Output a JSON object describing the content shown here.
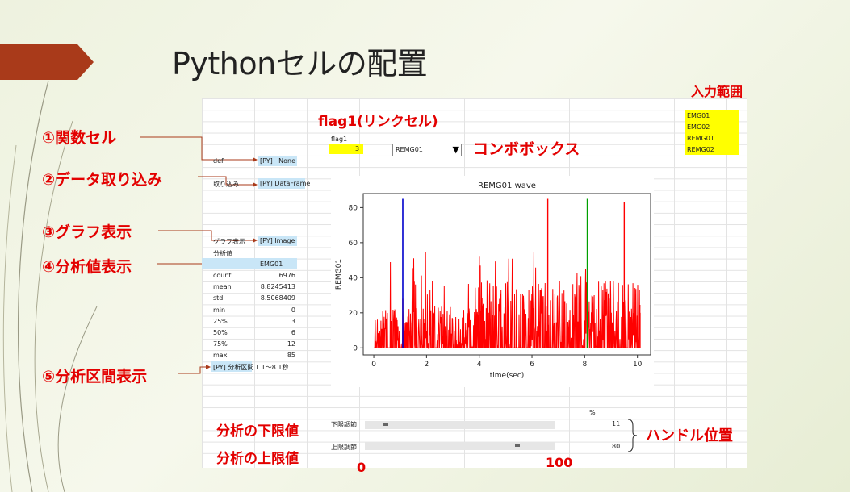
{
  "title": "Pythonセルの配置",
  "labels": {
    "input_range": "入力範囲",
    "flag1": "flag1(リンクセル)",
    "combobox": "コンボボックス",
    "func_cell": "①関数セル",
    "data_import": "②データ取り込み",
    "graph": "③グラフ表示",
    "analysis": "④分析値表示",
    "interval": "⑤分析区間表示",
    "lower": "分析の下限値",
    "upper": "分析の上限値",
    "handle": "ハンドル位置",
    "zero": "0",
    "hundred": "100"
  },
  "input_items": [
    "EMG01",
    "EMG02",
    "REMG01",
    "REMG02"
  ],
  "flag": {
    "label": "flag1",
    "value": "3"
  },
  "combo": {
    "value": "REMG01",
    "arrow": "▼"
  },
  "py": {
    "def_label": "def",
    "def_icon": "[PY]",
    "def_value": "None",
    "imp_label": "取り込み",
    "imp_value": "[PY] DataFrame",
    "graph_label": "グラフ表示",
    "graph_value": "[PY] Image",
    "anl_label": "分析値",
    "interval_value": "[PY] 分析区間",
    "interval_text": "1.1〜8.1秒"
  },
  "stats": {
    "header": "EMG01",
    "rows": [
      {
        "k": "count",
        "v": "6976"
      },
      {
        "k": "mean",
        "v": "8.8245413"
      },
      {
        "k": "std",
        "v": "8.5068409"
      },
      {
        "k": "min",
        "v": "0"
      },
      {
        "k": "25%",
        "v": "3"
      },
      {
        "k": "50%",
        "v": "6"
      },
      {
        "k": "75%",
        "v": "12"
      },
      {
        "k": "max",
        "v": "85"
      }
    ]
  },
  "sliders": {
    "percent": "%",
    "lower_label": "下限調節",
    "lower_value": "11",
    "lower_pos": 0.11,
    "upper_label": "上限調節",
    "upper_value": "80",
    "upper_pos": 0.8
  },
  "colors": {
    "accent": "#e30000",
    "yellow": "#ffff00",
    "cell_blue": "#c9e6f7",
    "ribbon": "#a93a1a"
  },
  "chart_data": {
    "type": "line",
    "title": "REMG01 wave",
    "xlabel": "time(sec)",
    "ylabel": "REMG01",
    "xlim": [
      -0.4,
      10.5
    ],
    "ylim": [
      -4,
      88
    ],
    "xticks": [
      0,
      2,
      4,
      6,
      8,
      10
    ],
    "yticks": [
      0,
      20,
      40,
      60,
      80
    ],
    "series": [
      {
        "color": "#ff0000",
        "x": [
          0,
          1.1,
          3.9,
          4.0,
          6.6,
          8.1,
          9.5,
          10.1
        ],
        "y": [
          0,
          28,
          10,
          52,
          85,
          45,
          83,
          20
        ]
      }
    ],
    "vlines": [
      {
        "x": 1.1,
        "color": "#0000cc"
      },
      {
        "x": 8.1,
        "color": "#00a000"
      }
    ]
  }
}
